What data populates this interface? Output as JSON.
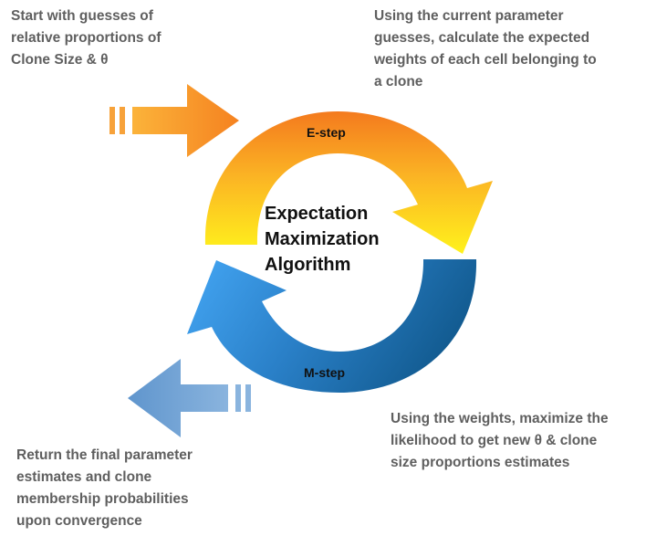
{
  "start_text": "Start with guesses of\nrelative proportions of\nClone Size & θ",
  "estep_text": "Using the current parameter\nguesses, calculate the expected\nweights of each cell belonging to\na clone",
  "center_text": "Expectation\nMaximization\nAlgorithm",
  "estep_label": "E-step",
  "mstep_label": "M-step",
  "mstep_text": "Using the weights, maximize the\nlikelihood to get new θ  & clone\nsize proportions estimates",
  "final_text": "Return the final parameter\nestimates and clone\nmembership probabilities\nupon convergence",
  "colors": {
    "text_gray": "#5f5f5f",
    "orange": "#f6861f",
    "yellow": "#ffe81a",
    "blue_light": "#3fa0f0",
    "blue_dark": "#135f94",
    "return_arrow": "#6f9ed0"
  }
}
